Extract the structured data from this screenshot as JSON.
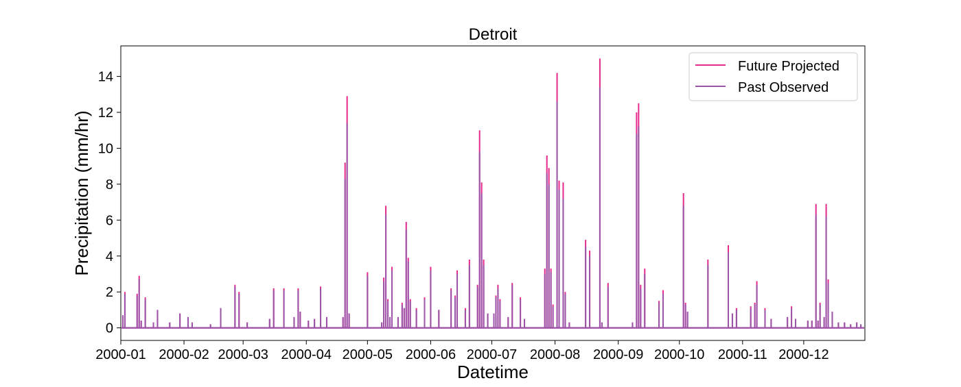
{
  "chart_data": {
    "type": "line",
    "title": "Detroit",
    "xlabel": "Datetime",
    "ylabel": "Precipitation (mm/hr)",
    "xlim": [
      "2000-01-01",
      "2000-12-31"
    ],
    "ylim": [
      -0.7,
      15.7
    ],
    "x_ticks": [
      "2000-01",
      "2000-02",
      "2000-03",
      "2000-04",
      "2000-05",
      "2000-06",
      "2000-07",
      "2000-08",
      "2000-09",
      "2000-10",
      "2000-11",
      "2000-12"
    ],
    "y_ticks": [
      "0",
      "2",
      "4",
      "6",
      "8",
      "10",
      "12",
      "14"
    ],
    "y_tick_values": [
      0,
      2,
      4,
      6,
      8,
      10,
      12,
      14
    ],
    "grid": false,
    "legend_position": "top-right",
    "series": [
      {
        "name": "Future Projected",
        "color": "#e6298b",
        "points": [
          [
            "2000-01-02",
            0.7
          ],
          [
            "2000-01-03",
            2.0
          ],
          [
            "2000-01-09",
            1.9
          ],
          [
            "2000-01-10",
            2.9
          ],
          [
            "2000-01-11",
            0.4
          ],
          [
            "2000-01-13",
            1.7
          ],
          [
            "2000-01-17",
            0.3
          ],
          [
            "2000-01-19",
            1.0
          ],
          [
            "2000-01-25",
            0.3
          ],
          [
            "2000-01-30",
            0.8
          ],
          [
            "2000-02-03",
            0.6
          ],
          [
            "2000-02-05",
            0.3
          ],
          [
            "2000-02-14",
            0.2
          ],
          [
            "2000-02-19",
            1.1
          ],
          [
            "2000-02-26",
            2.4
          ],
          [
            "2000-02-28",
            2.0
          ],
          [
            "2000-03-03",
            0.3
          ],
          [
            "2000-03-14",
            0.5
          ],
          [
            "2000-03-16",
            2.2
          ],
          [
            "2000-03-21",
            2.2
          ],
          [
            "2000-03-26",
            0.6
          ],
          [
            "2000-03-28",
            2.2
          ],
          [
            "2000-03-29",
            0.9
          ],
          [
            "2000-04-02",
            0.4
          ],
          [
            "2000-04-05",
            0.5
          ],
          [
            "2000-04-08",
            2.3
          ],
          [
            "2000-04-11",
            0.6
          ],
          [
            "2000-04-19",
            0.6
          ],
          [
            "2000-04-20",
            9.2
          ],
          [
            "2000-04-21",
            12.9
          ],
          [
            "2000-04-22",
            0.8
          ],
          [
            "2000-05-01",
            3.1
          ],
          [
            "2000-05-08",
            0.3
          ],
          [
            "2000-05-09",
            2.8
          ],
          [
            "2000-05-10",
            6.8
          ],
          [
            "2000-05-11",
            1.6
          ],
          [
            "2000-05-12",
            0.6
          ],
          [
            "2000-05-13",
            3.4
          ],
          [
            "2000-05-16",
            0.6
          ],
          [
            "2000-05-18",
            1.4
          ],
          [
            "2000-05-19",
            1.1
          ],
          [
            "2000-05-20",
            5.9
          ],
          [
            "2000-05-21",
            3.9
          ],
          [
            "2000-05-22",
            1.6
          ],
          [
            "2000-05-25",
            1.1
          ],
          [
            "2000-05-29",
            1.7
          ],
          [
            "2000-06-01",
            3.4
          ],
          [
            "2000-06-05",
            1.0
          ],
          [
            "2000-06-11",
            2.2
          ],
          [
            "2000-06-13",
            1.8
          ],
          [
            "2000-06-14",
            3.2
          ],
          [
            "2000-06-18",
            1.1
          ],
          [
            "2000-06-20",
            3.8
          ],
          [
            "2000-06-24",
            2.4
          ],
          [
            "2000-06-25",
            11.0
          ],
          [
            "2000-06-26",
            8.1
          ],
          [
            "2000-06-27",
            3.8
          ],
          [
            "2000-06-29",
            0.8
          ],
          [
            "2000-07-02",
            0.8
          ],
          [
            "2000-07-03",
            1.8
          ],
          [
            "2000-07-04",
            2.4
          ],
          [
            "2000-07-05",
            1.6
          ],
          [
            "2000-07-09",
            0.6
          ],
          [
            "2000-07-11",
            2.5
          ],
          [
            "2000-07-15",
            1.7
          ],
          [
            "2000-07-17",
            0.5
          ],
          [
            "2000-07-27",
            3.3
          ],
          [
            "2000-07-28",
            9.6
          ],
          [
            "2000-07-29",
            8.9
          ],
          [
            "2000-07-30",
            3.3
          ],
          [
            "2000-07-31",
            1.3
          ],
          [
            "2000-08-02",
            14.2
          ],
          [
            "2000-08-03",
            8.2
          ],
          [
            "2000-08-05",
            8.1
          ],
          [
            "2000-08-06",
            2.0
          ],
          [
            "2000-08-08",
            0.3
          ],
          [
            "2000-08-16",
            4.9
          ],
          [
            "2000-08-18",
            4.3
          ],
          [
            "2000-08-23",
            15.0
          ],
          [
            "2000-08-24",
            0.3
          ],
          [
            "2000-08-27",
            2.5
          ],
          [
            "2000-09-08",
            0.3
          ],
          [
            "2000-09-10",
            12.0
          ],
          [
            "2000-09-11",
            12.5
          ],
          [
            "2000-09-12",
            2.4
          ],
          [
            "2000-09-14",
            3.3
          ],
          [
            "2000-09-21",
            1.5
          ],
          [
            "2000-09-23",
            2.1
          ],
          [
            "2000-10-03",
            7.5
          ],
          [
            "2000-10-04",
            1.4
          ],
          [
            "2000-10-05",
            0.9
          ],
          [
            "2000-10-15",
            3.8
          ],
          [
            "2000-10-25",
            4.6
          ],
          [
            "2000-10-27",
            0.8
          ],
          [
            "2000-10-29",
            1.1
          ],
          [
            "2000-11-05",
            1.2
          ],
          [
            "2000-11-07",
            1.4
          ],
          [
            "2000-11-08",
            2.6
          ],
          [
            "2000-11-12",
            1.1
          ],
          [
            "2000-11-15",
            0.5
          ],
          [
            "2000-11-23",
            0.6
          ],
          [
            "2000-11-25",
            1.2
          ],
          [
            "2000-11-27",
            0.5
          ],
          [
            "2000-12-03",
            0.4
          ],
          [
            "2000-12-05",
            0.4
          ],
          [
            "2000-12-07",
            6.9
          ],
          [
            "2000-12-08",
            0.4
          ],
          [
            "2000-12-09",
            1.4
          ],
          [
            "2000-12-11",
            0.6
          ],
          [
            "2000-12-12",
            6.9
          ],
          [
            "2000-12-13",
            2.7
          ],
          [
            "2000-12-15",
            0.9
          ],
          [
            "2000-12-18",
            0.3
          ],
          [
            "2000-12-21",
            0.3
          ],
          [
            "2000-12-24",
            0.2
          ],
          [
            "2000-12-27",
            0.3
          ],
          [
            "2000-12-29",
            0.2
          ]
        ]
      },
      {
        "name": "Past Observed",
        "color": "#9b55a8",
        "points": [
          [
            "2000-01-02",
            0.7
          ],
          [
            "2000-01-03",
            1.9
          ],
          [
            "2000-01-09",
            1.8
          ],
          [
            "2000-01-10",
            2.7
          ],
          [
            "2000-01-11",
            0.4
          ],
          [
            "2000-01-13",
            1.6
          ],
          [
            "2000-01-17",
            0.3
          ],
          [
            "2000-01-19",
            1.0
          ],
          [
            "2000-01-25",
            0.3
          ],
          [
            "2000-01-30",
            0.8
          ],
          [
            "2000-02-03",
            0.6
          ],
          [
            "2000-02-05",
            0.3
          ],
          [
            "2000-02-14",
            0.2
          ],
          [
            "2000-02-19",
            1.1
          ],
          [
            "2000-02-26",
            2.3
          ],
          [
            "2000-02-28",
            1.9
          ],
          [
            "2000-03-03",
            0.3
          ],
          [
            "2000-03-14",
            0.5
          ],
          [
            "2000-03-16",
            2.1
          ],
          [
            "2000-03-21",
            2.1
          ],
          [
            "2000-03-26",
            0.6
          ],
          [
            "2000-03-28",
            2.1
          ],
          [
            "2000-03-29",
            0.9
          ],
          [
            "2000-04-02",
            0.4
          ],
          [
            "2000-04-05",
            0.5
          ],
          [
            "2000-04-08",
            2.2
          ],
          [
            "2000-04-11",
            0.6
          ],
          [
            "2000-04-19",
            0.6
          ],
          [
            "2000-04-20",
            8.3
          ],
          [
            "2000-04-21",
            11.4
          ],
          [
            "2000-04-22",
            0.8
          ],
          [
            "2000-05-01",
            2.9
          ],
          [
            "2000-05-08",
            0.3
          ],
          [
            "2000-05-09",
            2.6
          ],
          [
            "2000-05-10",
            6.3
          ],
          [
            "2000-05-11",
            1.5
          ],
          [
            "2000-05-12",
            0.6
          ],
          [
            "2000-05-13",
            3.2
          ],
          [
            "2000-05-16",
            0.6
          ],
          [
            "2000-05-18",
            1.3
          ],
          [
            "2000-05-19",
            1.1
          ],
          [
            "2000-05-20",
            5.5
          ],
          [
            "2000-05-21",
            3.7
          ],
          [
            "2000-05-22",
            1.5
          ],
          [
            "2000-05-25",
            1.0
          ],
          [
            "2000-05-29",
            1.6
          ],
          [
            "2000-06-01",
            3.2
          ],
          [
            "2000-06-05",
            1.0
          ],
          [
            "2000-06-11",
            2.1
          ],
          [
            "2000-06-13",
            1.7
          ],
          [
            "2000-06-14",
            3.0
          ],
          [
            "2000-06-18",
            1.0
          ],
          [
            "2000-06-20",
            3.5
          ],
          [
            "2000-06-24",
            2.3
          ],
          [
            "2000-06-25",
            9.8
          ],
          [
            "2000-06-26",
            7.5
          ],
          [
            "2000-06-27",
            3.5
          ],
          [
            "2000-06-29",
            0.8
          ],
          [
            "2000-07-02",
            0.8
          ],
          [
            "2000-07-03",
            1.7
          ],
          [
            "2000-07-04",
            2.2
          ],
          [
            "2000-07-05",
            1.5
          ],
          [
            "2000-07-09",
            0.6
          ],
          [
            "2000-07-11",
            2.4
          ],
          [
            "2000-07-15",
            1.6
          ],
          [
            "2000-07-17",
            0.5
          ],
          [
            "2000-07-27",
            3.0
          ],
          [
            "2000-07-28",
            8.6
          ],
          [
            "2000-07-29",
            8.0
          ],
          [
            "2000-07-30",
            3.1
          ],
          [
            "2000-07-31",
            1.2
          ],
          [
            "2000-08-02",
            12.6
          ],
          [
            "2000-08-03",
            7.7
          ],
          [
            "2000-08-05",
            7.2
          ],
          [
            "2000-08-06",
            1.9
          ],
          [
            "2000-08-08",
            0.3
          ],
          [
            "2000-08-16",
            4.5
          ],
          [
            "2000-08-18",
            4.0
          ],
          [
            "2000-08-23",
            13.4
          ],
          [
            "2000-08-24",
            0.3
          ],
          [
            "2000-08-27",
            2.3
          ],
          [
            "2000-09-08",
            0.3
          ],
          [
            "2000-09-10",
            10.8
          ],
          [
            "2000-09-11",
            11.2
          ],
          [
            "2000-09-12",
            2.2
          ],
          [
            "2000-09-14",
            3.0
          ],
          [
            "2000-09-21",
            1.4
          ],
          [
            "2000-09-23",
            1.9
          ],
          [
            "2000-10-03",
            6.8
          ],
          [
            "2000-10-04",
            1.3
          ],
          [
            "2000-10-05",
            0.9
          ],
          [
            "2000-10-15",
            3.5
          ],
          [
            "2000-10-25",
            4.2
          ],
          [
            "2000-10-27",
            0.8
          ],
          [
            "2000-10-29",
            1.0
          ],
          [
            "2000-11-05",
            1.1
          ],
          [
            "2000-11-07",
            1.3
          ],
          [
            "2000-11-08",
            2.4
          ],
          [
            "2000-11-12",
            1.0
          ],
          [
            "2000-11-15",
            0.5
          ],
          [
            "2000-11-23",
            0.6
          ],
          [
            "2000-11-25",
            1.1
          ],
          [
            "2000-11-27",
            0.5
          ],
          [
            "2000-12-03",
            0.4
          ],
          [
            "2000-12-05",
            0.4
          ],
          [
            "2000-12-07",
            6.3
          ],
          [
            "2000-12-08",
            0.4
          ],
          [
            "2000-12-09",
            1.3
          ],
          [
            "2000-12-11",
            0.6
          ],
          [
            "2000-12-12",
            6.2
          ],
          [
            "2000-12-13",
            2.5
          ],
          [
            "2000-12-15",
            0.9
          ],
          [
            "2000-12-18",
            0.3
          ],
          [
            "2000-12-21",
            0.3
          ],
          [
            "2000-12-24",
            0.2
          ],
          [
            "2000-12-27",
            0.3
          ],
          [
            "2000-12-29",
            0.2
          ]
        ]
      }
    ]
  }
}
